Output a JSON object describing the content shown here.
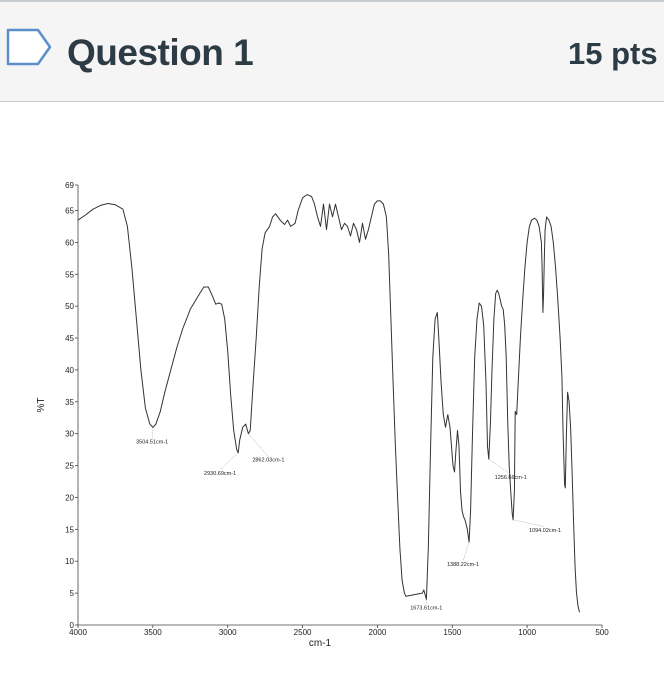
{
  "question": {
    "title": "Question 1",
    "points": "15 pts",
    "flag_icon": "bookmark-flag-icon",
    "flag_color": "#5b8fc9"
  },
  "chart_data": {
    "type": "line",
    "title": "",
    "xlabel": "cm-1",
    "ylabel": "%T",
    "xlim": [
      4000,
      500
    ],
    "ylim": [
      0,
      69
    ],
    "x_ticks": [
      "4000",
      "3500",
      "3000",
      "2500",
      "2000",
      "1500",
      "1000",
      "500"
    ],
    "y_ticks": [
      "0",
      "5",
      "10",
      "15",
      "20",
      "25",
      "30",
      "35",
      "40",
      "45",
      "50",
      "55",
      "60",
      "65",
      "69"
    ],
    "grid": false,
    "line_color": "#333333",
    "series": [
      {
        "points": [
          [
            4000,
            63.5
          ],
          [
            3950,
            64.3
          ],
          [
            3900,
            65.2
          ],
          [
            3850,
            65.8
          ],
          [
            3800,
            66.1
          ],
          [
            3750,
            65.9
          ],
          [
            3700,
            65.2
          ],
          [
            3670,
            62.5
          ],
          [
            3640,
            56
          ],
          [
            3610,
            48
          ],
          [
            3580,
            40
          ],
          [
            3550,
            34
          ],
          [
            3520,
            31.5
          ],
          [
            3500,
            31
          ],
          [
            3480,
            31.5
          ],
          [
            3450,
            33.5
          ],
          [
            3420,
            36.5
          ],
          [
            3380,
            40
          ],
          [
            3340,
            43.5
          ],
          [
            3300,
            46.5
          ],
          [
            3250,
            49.5
          ],
          [
            3200,
            51.5
          ],
          [
            3160,
            53
          ],
          [
            3130,
            53
          ],
          [
            3100,
            51.5
          ],
          [
            3080,
            50.3
          ],
          [
            3060,
            50.5
          ],
          [
            3040,
            50.3
          ],
          [
            3020,
            48
          ],
          [
            3000,
            43
          ],
          [
            2980,
            36
          ],
          [
            2960,
            30.5
          ],
          [
            2940,
            27.5
          ],
          [
            2930,
            27
          ],
          [
            2920,
            29
          ],
          [
            2900,
            31
          ],
          [
            2880,
            31.5
          ],
          [
            2862,
            30
          ],
          [
            2850,
            30.5
          ],
          [
            2830,
            38
          ],
          [
            2810,
            45
          ],
          [
            2790,
            53
          ],
          [
            2770,
            59
          ],
          [
            2750,
            61.5
          ],
          [
            2720,
            62.5
          ],
          [
            2700,
            64
          ],
          [
            2680,
            64.5
          ],
          [
            2650,
            63.5
          ],
          [
            2620,
            62.8
          ],
          [
            2600,
            63.5
          ],
          [
            2580,
            62.5
          ],
          [
            2550,
            63
          ],
          [
            2530,
            65
          ],
          [
            2500,
            67
          ],
          [
            2470,
            67.5
          ],
          [
            2440,
            67.2
          ],
          [
            2420,
            66
          ],
          [
            2400,
            64
          ],
          [
            2380,
            62.5
          ],
          [
            2360,
            66
          ],
          [
            2340,
            62
          ],
          [
            2320,
            66
          ],
          [
            2300,
            64
          ],
          [
            2280,
            66
          ],
          [
            2260,
            64
          ],
          [
            2240,
            62
          ],
          [
            2220,
            63
          ],
          [
            2200,
            62.5
          ],
          [
            2180,
            61
          ],
          [
            2160,
            63
          ],
          [
            2140,
            62
          ],
          [
            2120,
            60
          ],
          [
            2100,
            63
          ],
          [
            2080,
            60.5
          ],
          [
            2060,
            62
          ],
          [
            2040,
            64
          ],
          [
            2020,
            66
          ],
          [
            2000,
            66.5
          ],
          [
            1980,
            66.5
          ],
          [
            1960,
            66
          ],
          [
            1940,
            64
          ],
          [
            1925,
            58
          ],
          [
            1910,
            48
          ],
          [
            1895,
            38
          ],
          [
            1880,
            28
          ],
          [
            1865,
            20
          ],
          [
            1850,
            12
          ],
          [
            1835,
            7
          ],
          [
            1820,
            5
          ],
          [
            1810,
            4.5
          ],
          [
            1700,
            5
          ],
          [
            1690,
            5.5
          ],
          [
            1673,
            4
          ],
          [
            1660,
            12
          ],
          [
            1645,
            28
          ],
          [
            1630,
            42
          ],
          [
            1615,
            48
          ],
          [
            1600,
            49
          ],
          [
            1590,
            45
          ],
          [
            1575,
            38
          ],
          [
            1560,
            33
          ],
          [
            1545,
            31
          ],
          [
            1530,
            33
          ],
          [
            1515,
            31
          ],
          [
            1505,
            28
          ],
          [
            1495,
            25
          ],
          [
            1485,
            24
          ],
          [
            1475,
            27.5
          ],
          [
            1465,
            30.5
          ],
          [
            1455,
            28
          ],
          [
            1445,
            21
          ],
          [
            1435,
            18
          ],
          [
            1425,
            17
          ],
          [
            1415,
            16.5
          ],
          [
            1400,
            15
          ],
          [
            1388,
            13
          ],
          [
            1378,
            18
          ],
          [
            1365,
            30
          ],
          [
            1350,
            42
          ],
          [
            1335,
            48
          ],
          [
            1320,
            50.5
          ],
          [
            1305,
            50
          ],
          [
            1290,
            47
          ],
          [
            1275,
            38
          ],
          [
            1265,
            28
          ],
          [
            1256,
            26
          ],
          [
            1245,
            32
          ],
          [
            1235,
            40
          ],
          [
            1222,
            48
          ],
          [
            1210,
            52
          ],
          [
            1200,
            52.5
          ],
          [
            1190,
            52
          ],
          [
            1180,
            51
          ],
          [
            1170,
            50
          ],
          [
            1160,
            49.5
          ],
          [
            1150,
            47
          ],
          [
            1140,
            42
          ],
          [
            1130,
            32
          ],
          [
            1120,
            25
          ],
          [
            1110,
            21
          ],
          [
            1100,
            17.5
          ],
          [
            1094,
            16.5
          ],
          [
            1085,
            21
          ],
          [
            1080,
            33.5
          ],
          [
            1070,
            33
          ],
          [
            1060,
            38
          ],
          [
            1045,
            45
          ],
          [
            1030,
            51
          ],
          [
            1015,
            56
          ],
          [
            1000,
            60
          ],
          [
            985,
            62.5
          ],
          [
            970,
            63.5
          ],
          [
            950,
            63.8
          ],
          [
            935,
            63.5
          ],
          [
            920,
            62.5
          ],
          [
            905,
            60
          ],
          [
            900,
            56
          ],
          [
            895,
            49
          ],
          [
            890,
            52
          ],
          [
            885,
            58
          ],
          [
            880,
            62
          ],
          [
            870,
            64
          ],
          [
            855,
            63.5
          ],
          [
            840,
            62.5
          ],
          [
            825,
            60
          ],
          [
            810,
            56
          ],
          [
            795,
            51
          ],
          [
            780,
            45
          ],
          [
            768,
            39
          ],
          [
            760,
            30
          ],
          [
            750,
            22
          ],
          [
            745,
            21.5
          ],
          [
            738,
            30
          ],
          [
            730,
            36.5
          ],
          [
            720,
            35
          ],
          [
            710,
            31
          ],
          [
            700,
            24
          ],
          [
            690,
            16
          ],
          [
            680,
            9
          ],
          [
            670,
            5
          ],
          [
            660,
            3
          ],
          [
            650,
            2
          ]
        ]
      }
    ],
    "annotations": [
      {
        "text": "3504.51cm-1",
        "x": 3504.51,
        "y": 31
      },
      {
        "text": "2930.69cm-1",
        "x": 2930.69,
        "y": 27
      },
      {
        "text": "2862.03cm-1",
        "x": 2862.03,
        "y": 30
      },
      {
        "text": "1673.61cm-1",
        "x": 1673.61,
        "y": 4
      },
      {
        "text": "1388.22cm-1",
        "x": 1388.22,
        "y": 13
      },
      {
        "text": "1256.66cm-1",
        "x": 1256.66,
        "y": 26
      },
      {
        "text": "1094.02cm-1",
        "x": 1094.02,
        "y": 16.5
      }
    ]
  }
}
